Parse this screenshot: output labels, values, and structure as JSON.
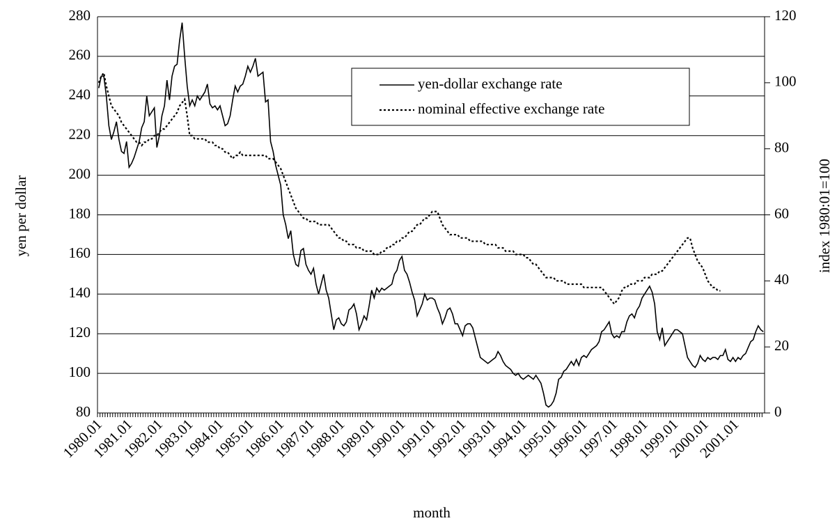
{
  "chart_data": {
    "type": "line",
    "xlabel": "month",
    "ylabel": "yen per dollar",
    "y2label": "index 1980:01=100",
    "categories": [
      "1980.01",
      null,
      null,
      null,
      null,
      null,
      null,
      null,
      null,
      null,
      null,
      null,
      "1981.01",
      null,
      null,
      null,
      null,
      null,
      null,
      null,
      null,
      null,
      null,
      null,
      "1982.01",
      null,
      null,
      null,
      null,
      null,
      null,
      null,
      null,
      null,
      null,
      null,
      "1983.01",
      null,
      null,
      null,
      null,
      null,
      null,
      null,
      null,
      null,
      null,
      null,
      "1984.01",
      null,
      null,
      null,
      null,
      null,
      null,
      null,
      null,
      null,
      null,
      null,
      "1985.01",
      null,
      null,
      null,
      null,
      null,
      null,
      null,
      null,
      null,
      null,
      null,
      "1986.01",
      null,
      null,
      null,
      null,
      null,
      null,
      null,
      null,
      null,
      null,
      null,
      "1987.01",
      null,
      null,
      null,
      null,
      null,
      null,
      null,
      null,
      null,
      null,
      null,
      "1988.01",
      null,
      null,
      null,
      null,
      null,
      null,
      null,
      null,
      null,
      null,
      null,
      "1989.01",
      null,
      null,
      null,
      null,
      null,
      null,
      null,
      null,
      null,
      null,
      null,
      "1990.01",
      null,
      null,
      null,
      null,
      null,
      null,
      null,
      null,
      null,
      null,
      null,
      "1991.01",
      null,
      null,
      null,
      null,
      null,
      null,
      null,
      null,
      null,
      null,
      null,
      "1992.01",
      null,
      null,
      null,
      null,
      null,
      null,
      null,
      null,
      null,
      null,
      null,
      "1993.01",
      null,
      null,
      null,
      null,
      null,
      null,
      null,
      null,
      null,
      null,
      null,
      "1994.01",
      null,
      null,
      null,
      null,
      null,
      null,
      null,
      null,
      null,
      null,
      null,
      "1995.01",
      null,
      null,
      null,
      null,
      null,
      null,
      null,
      null,
      null,
      null,
      null,
      "1996.01",
      null,
      null,
      null,
      null,
      null,
      null,
      null,
      null,
      null,
      null,
      null,
      "1997.01",
      null,
      null,
      null,
      null,
      null,
      null,
      null,
      null,
      null,
      null,
      null,
      "1998.01",
      null,
      null,
      null,
      null,
      null,
      null,
      null,
      null,
      null,
      null,
      null,
      "1999.01",
      null,
      null,
      null,
      null,
      null,
      null,
      null,
      null,
      null,
      null,
      null,
      "2000.01",
      null,
      null,
      null,
      null,
      null,
      null,
      null,
      null,
      null,
      null,
      null,
      "2001.01",
      null,
      null,
      null,
      null,
      null,
      null,
      null,
      null,
      null,
      null,
      null
    ],
    "series": [
      {
        "name": "yen-dollar exchange rate",
        "color": "#000000",
        "style": "solid",
        "values": [
          244,
          250,
          250,
          240,
          225,
          218,
          222,
          227,
          218,
          212,
          211,
          217,
          204,
          206,
          209,
          213,
          217,
          224,
          227,
          240,
          230,
          232,
          234,
          214,
          220,
          230,
          235,
          248,
          238,
          250,
          255,
          256,
          268,
          277,
          260,
          245,
          235,
          238,
          235,
          240,
          238,
          240,
          242,
          246,
          236,
          234,
          235,
          233,
          235,
          230,
          225,
          226,
          230,
          238,
          245,
          242,
          245,
          246,
          250,
          255,
          252,
          255,
          259,
          250,
          251,
          252,
          237,
          238,
          217,
          212,
          205,
          200,
          195,
          180,
          175,
          168,
          172,
          160,
          155,
          154,
          162,
          163,
          155,
          152,
          150,
          153,
          145,
          140,
          145,
          150,
          142,
          138,
          130,
          122,
          127,
          128,
          125,
          124,
          126,
          132,
          133,
          135,
          130,
          122,
          125,
          129,
          127,
          134,
          142,
          138,
          143,
          141,
          143,
          142,
          143,
          144,
          145,
          150,
          152,
          157,
          159,
          152,
          150,
          146,
          141,
          137,
          129,
          132,
          135,
          140,
          137,
          138,
          138,
          137,
          133,
          130,
          125,
          128,
          132,
          133,
          130,
          125,
          125,
          122,
          119,
          124,
          125,
          125,
          123,
          118,
          113,
          108,
          107,
          106,
          105,
          106,
          107,
          108,
          111,
          109,
          106,
          104,
          103,
          102,
          100,
          99,
          100,
          98,
          97,
          98,
          99,
          98,
          97,
          99,
          97,
          95,
          90,
          84,
          83,
          84,
          86,
          90,
          97,
          98,
          101,
          102,
          104,
          106,
          104,
          107,
          104,
          108,
          109,
          108,
          110,
          112,
          113,
          114,
          116,
          121,
          122,
          124,
          126,
          120,
          118,
          119,
          118,
          121,
          121,
          126,
          129,
          130,
          128,
          132,
          134,
          138,
          140,
          142,
          144,
          141,
          135,
          121,
          117,
          123,
          114,
          116,
          118,
          120,
          122,
          122,
          121,
          120,
          114,
          108,
          106,
          104,
          103,
          105,
          109,
          107,
          106,
          108,
          107,
          108,
          108,
          107,
          109,
          109,
          112,
          107,
          106,
          108,
          106,
          108,
          107,
          109,
          110,
          113,
          116,
          117,
          121,
          124,
          122,
          121
        ]
      },
      {
        "name": "nominal effective exchange rate",
        "color": "#000000",
        "style": "dotted",
        "axis": "y2",
        "values": [
          100,
          102,
          103,
          99,
          96,
          93,
          92,
          91,
          90,
          88,
          87,
          86,
          85,
          84,
          83,
          82,
          82,
          81,
          82,
          82,
          83,
          83,
          84,
          84,
          85,
          86,
          86,
          87,
          88,
          89,
          90,
          91,
          93,
          94,
          95,
          90,
          84,
          84,
          83,
          83,
          83,
          83,
          83,
          82,
          82,
          82,
          81,
          81,
          80,
          80,
          79,
          79,
          78,
          77,
          78,
          78,
          79,
          78,
          78,
          78,
          78,
          78,
          78,
          78,
          78,
          78,
          78,
          77,
          77,
          77,
          76,
          75,
          74,
          72,
          70,
          68,
          66,
          64,
          62,
          61,
          60,
          59,
          59,
          58,
          58,
          58,
          58,
          57,
          57,
          57,
          57,
          57,
          56,
          55,
          54,
          53,
          53,
          52,
          52,
          51,
          51,
          51,
          50,
          50,
          50,
          49,
          49,
          49,
          49,
          48,
          48,
          48,
          49,
          49,
          50,
          50,
          51,
          51,
          52,
          52,
          53,
          53,
          54,
          55,
          55,
          56,
          57,
          57,
          58,
          59,
          59,
          60,
          61,
          61,
          61,
          59,
          57,
          56,
          55,
          54,
          54,
          54,
          54,
          53,
          53,
          53,
          53,
          52,
          52,
          52,
          52,
          52,
          52,
          51,
          51,
          51,
          51,
          51,
          50,
          50,
          50,
          49,
          49,
          49,
          49,
          48,
          48,
          48,
          48,
          47,
          47,
          46,
          45,
          45,
          44,
          43,
          42,
          41,
          41,
          41,
          41,
          40,
          40,
          40,
          40,
          39,
          39,
          39,
          39,
          39,
          39,
          39,
          38,
          38,
          38,
          38,
          38,
          38,
          38,
          38,
          37,
          36,
          35,
          34,
          33,
          34,
          35,
          37,
          38,
          38,
          39,
          39,
          39,
          40,
          40,
          40,
          41,
          41,
          41,
          42,
          42,
          42,
          43,
          43,
          44,
          45,
          46,
          47,
          48,
          49,
          50,
          51,
          52,
          53,
          53,
          50,
          48,
          46,
          45,
          44,
          42,
          40,
          39,
          38,
          38,
          37,
          37,
          null,
          null,
          null,
          null,
          null,
          null,
          null,
          null,
          null,
          null,
          null,
          null,
          null,
          null,
          null,
          null,
          null
        ]
      }
    ],
    "ylim": [
      80,
      280
    ],
    "yticks": [
      80,
      100,
      120,
      140,
      160,
      180,
      200,
      220,
      240,
      260,
      280
    ],
    "y2lim": [
      0,
      120
    ],
    "y2ticks": [
      0,
      20,
      40,
      60,
      80,
      100,
      120
    ],
    "grid": true,
    "legend": "upper right"
  }
}
